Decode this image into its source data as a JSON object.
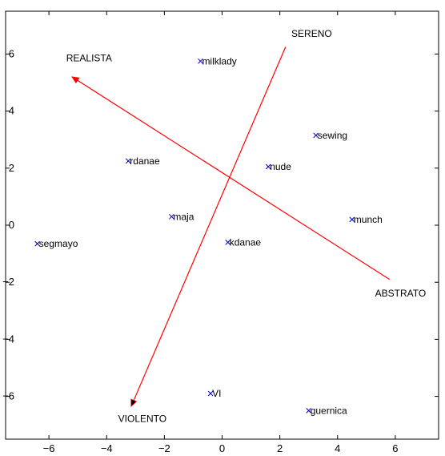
{
  "chart_data": {
    "type": "scatter",
    "title": "",
    "xlabel": "",
    "ylabel": "",
    "xlim": [
      -7.5,
      7.5
    ],
    "ylim": [
      -7.5,
      7.5
    ],
    "x_ticks": [
      -6,
      -4,
      -2,
      0,
      2,
      4,
      6
    ],
    "y_ticks": [
      -6,
      -4,
      -2,
      0,
      2,
      4,
      6
    ],
    "grid": false,
    "marker": "x",
    "marker_color": "#0000cc",
    "vector_color": "#ff0000",
    "points": [
      {
        "label": "milklady",
        "x": -0.75,
        "y": 5.75
      },
      {
        "label": "sewing",
        "x": 3.25,
        "y": 3.15
      },
      {
        "label": "rdanae",
        "x": -3.25,
        "y": 2.25
      },
      {
        "label": "nude",
        "x": 1.6,
        "y": 2.05
      },
      {
        "label": "maja",
        "x": -1.75,
        "y": 0.3
      },
      {
        "label": "munch",
        "x": 4.5,
        "y": 0.2
      },
      {
        "label": "segmayo",
        "x": -6.4,
        "y": -0.65
      },
      {
        "label": "kdanae",
        "x": 0.2,
        "y": -0.6
      },
      {
        "label": "VI",
        "x": -0.4,
        "y": -5.9
      },
      {
        "label": "guernica",
        "x": 3.0,
        "y": -6.5
      }
    ],
    "vectors": [
      {
        "from": "ABSTRATO",
        "to": "REALISTA",
        "x0": 5.8,
        "y0": -1.9,
        "x1": -5.2,
        "y1": 5.2,
        "arrow_color": "#ff0000"
      },
      {
        "from": "SERENO",
        "to": "VIOLENTO",
        "x0": 2.2,
        "y0": 6.25,
        "x1": -3.15,
        "y1": -6.35,
        "arrow_color": "#000000"
      }
    ],
    "axis_labels": [
      {
        "text": "REALISTA",
        "x": -5.4,
        "y": 5.75
      },
      {
        "text": "SERENO",
        "x": 2.4,
        "y": 6.6
      },
      {
        "text": "ABSTRATO",
        "x": 5.3,
        "y": -2.5
      },
      {
        "text": "VIOLENTO",
        "x": -3.6,
        "y": -6.9
      }
    ]
  }
}
